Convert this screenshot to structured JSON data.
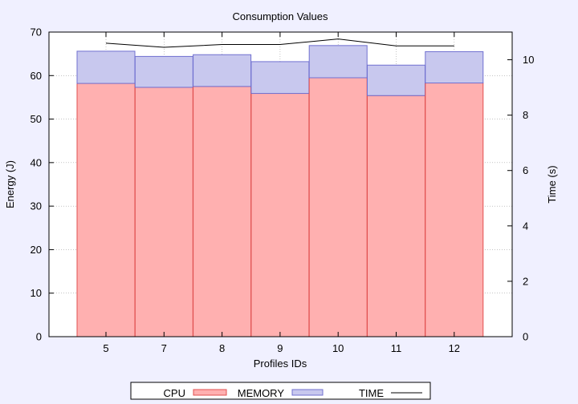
{
  "chart_data": {
    "type": "bar",
    "title": "Consumption Values",
    "xlabel": "Profiles IDs",
    "ylabel": "Energy (J)",
    "y2label": "Time (s)",
    "categories": [
      "5",
      "7",
      "8",
      "9",
      "10",
      "11",
      "12"
    ],
    "ylim": [
      0,
      70
    ],
    "y2lim": [
      0,
      11.0
    ],
    "yticks": [
      0,
      10,
      20,
      30,
      40,
      50,
      60,
      70
    ],
    "y2ticks": [
      0,
      2,
      4,
      6,
      8,
      10
    ],
    "stacked": true,
    "grid": true,
    "legend_position": "bottom",
    "series": [
      {
        "name": "CPU",
        "type": "bar",
        "axis": "left",
        "color": "#ffb0b0",
        "stroke": "#e05050",
        "values": [
          58.2,
          57.3,
          57.5,
          55.9,
          59.5,
          55.4,
          58.3
        ]
      },
      {
        "name": "MEMORY",
        "type": "bar",
        "axis": "left",
        "color": "#c8c8ee",
        "stroke": "#7070d0",
        "values": [
          7.4,
          7.1,
          7.3,
          7.3,
          7.4,
          7.0,
          7.2
        ]
      },
      {
        "name": "TIME",
        "type": "line",
        "axis": "right",
        "color": "#000000",
        "values": [
          10.6,
          10.45,
          10.55,
          10.55,
          10.75,
          10.5,
          10.5
        ]
      }
    ]
  }
}
